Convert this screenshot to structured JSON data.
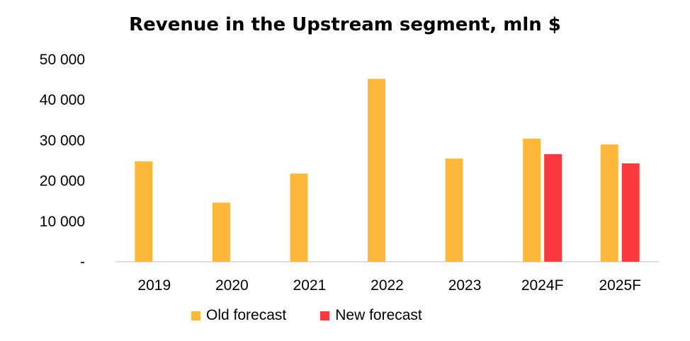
{
  "chart_data": {
    "type": "bar",
    "title": "Revenue in the Upstream segment, mln $",
    "categories": [
      "2019",
      "2020",
      "2021",
      "2022",
      "2023",
      "2024F",
      "2025F"
    ],
    "series": [
      {
        "name": "Old forecast",
        "color": "#FDB73A",
        "values": [
          24800,
          14600,
          21800,
          45200,
          25500,
          30400,
          29000
        ]
      },
      {
        "name": "New forecast",
        "color": "#F9393E",
        "values": [
          null,
          null,
          null,
          null,
          null,
          26600,
          24300
        ]
      }
    ],
    "y_tick_labels": [
      "-",
      "10 000",
      "20 000",
      "30 000",
      "40 000",
      "50 000"
    ],
    "y_ticks": [
      0,
      10000,
      20000,
      30000,
      40000,
      50000
    ],
    "ylim": [
      0,
      50000
    ],
    "xlabel": "",
    "ylabel": "",
    "legend_position": "bottom"
  }
}
